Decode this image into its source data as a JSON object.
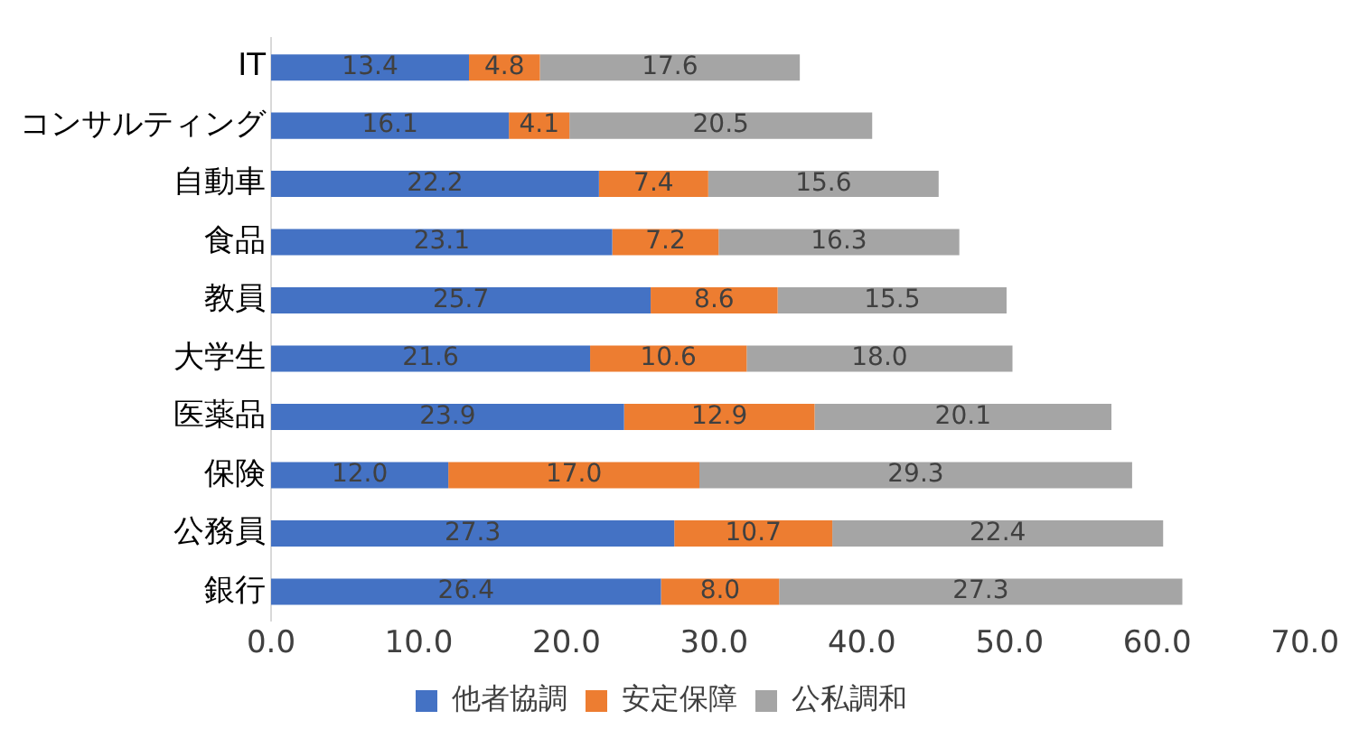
{
  "chart_data": {
    "type": "bar",
    "orientation": "horizontal",
    "stacked": true,
    "categories": [
      "IT",
      "コンサルティング",
      "自動車",
      "食品",
      "教員",
      "大学生",
      "医薬品",
      "保険",
      "公務員",
      "銀行"
    ],
    "series": [
      {
        "name": "他者協調",
        "color": "#4472c4",
        "values": [
          13.4,
          16.1,
          22.2,
          23.1,
          25.7,
          21.6,
          23.9,
          12.0,
          27.3,
          26.4
        ],
        "value_labels": [
          "13.4",
          "16.1",
          "22.2",
          "23.1",
          "25.7",
          "21.6",
          "23.9",
          "12.0",
          "27.3",
          "26.4"
        ]
      },
      {
        "name": "安定保障",
        "color": "#ed7d31",
        "values": [
          4.8,
          4.1,
          7.4,
          7.2,
          8.6,
          10.6,
          12.9,
          17.0,
          10.7,
          8.0
        ],
        "value_labels": [
          "4.8",
          "4.1",
          "7.4",
          "7.2",
          "8.6",
          "10.6",
          "12.9",
          "17.0",
          "10.7",
          "8.0"
        ]
      },
      {
        "name": "公私調和",
        "color": "#a5a5a5",
        "values": [
          17.6,
          20.5,
          15.6,
          16.3,
          15.5,
          18.0,
          20.1,
          29.3,
          22.4,
          27.3
        ],
        "value_labels": [
          "17.6",
          "20.5",
          "15.6",
          "16.3",
          "15.5",
          "18.0",
          "20.1",
          "29.3",
          "22.4",
          "27.3"
        ]
      }
    ],
    "xlim": [
      0,
      70
    ],
    "xticks": [
      {
        "value": 0,
        "label": "0.0"
      },
      {
        "value": 10,
        "label": "10.0"
      },
      {
        "value": 20,
        "label": "20.0"
      },
      {
        "value": 30,
        "label": "30.0"
      },
      {
        "value": 40,
        "label": "40.0"
      },
      {
        "value": 50,
        "label": "50.0"
      },
      {
        "value": 60,
        "label": "60.0"
      },
      {
        "value": 70,
        "label": "70.0"
      }
    ],
    "grid": false,
    "legend": "bottom"
  }
}
